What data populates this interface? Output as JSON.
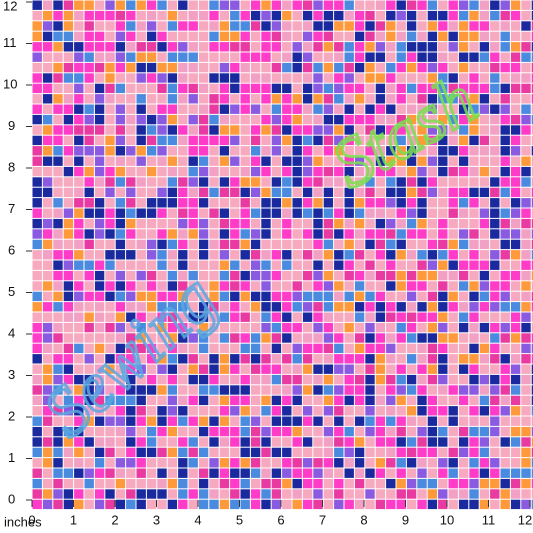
{
  "ruler": {
    "unit": "inches",
    "x_labels": [
      0,
      1,
      2,
      3,
      4,
      5,
      6,
      7,
      8,
      9,
      10,
      11,
      12
    ],
    "y_labels": [
      0,
      1,
      2,
      3,
      4,
      5,
      6,
      7,
      8,
      9,
      10,
      11,
      12
    ]
  },
  "watermark": [
    "Sewing",
    "Stash"
  ]
}
